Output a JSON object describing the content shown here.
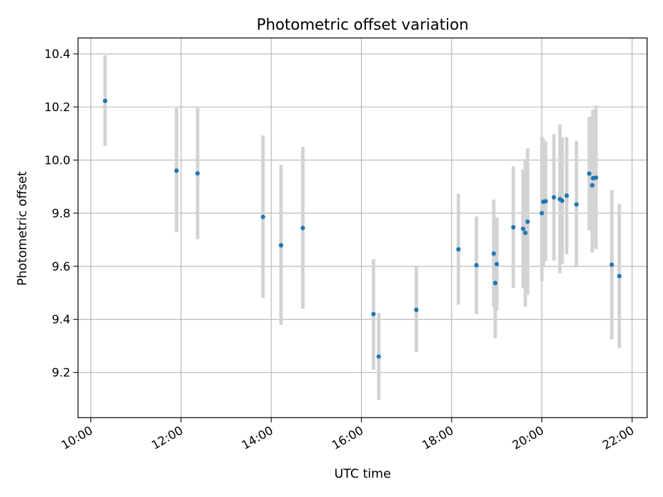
{
  "chart_data": {
    "type": "scatter",
    "title": "Photometric offset variation",
    "xlabel": "UTC time",
    "ylabel": "Photometric offset",
    "x_tick_labels": [
      "10:00",
      "12:00",
      "14:00",
      "16:00",
      "18:00",
      "20:00",
      "22:00"
    ],
    "y_tick_labels": [
      "9.2",
      "9.4",
      "9.6",
      "9.8",
      "10.0",
      "10.2",
      "10.4"
    ],
    "x_ticks": [
      "10:00",
      "12:00",
      "14:00",
      "16:00",
      "18:00",
      "20:00",
      "22:00"
    ],
    "y_ticks": [
      9.2,
      9.4,
      9.6,
      9.8,
      10.0,
      10.2,
      10.4
    ],
    "xlim": [
      "09:43",
      "22:20"
    ],
    "ylim": [
      9.03,
      10.46
    ],
    "grid": true,
    "marker_color": "#1f77b4",
    "errorbar_color": "#d3d3d3",
    "points": [
      {
        "x": "10:19",
        "y": 10.223,
        "low": 10.053,
        "high": 10.395
      },
      {
        "x": "11:54",
        "y": 9.96,
        "low": 9.728,
        "high": 10.196
      },
      {
        "x": "12:22",
        "y": 9.95,
        "low": 9.702,
        "high": 10.2
      },
      {
        "x": "13:49",
        "y": 9.786,
        "low": 9.48,
        "high": 10.093
      },
      {
        "x": "14:13",
        "y": 9.679,
        "low": 9.379,
        "high": 9.982
      },
      {
        "x": "14:42",
        "y": 9.744,
        "low": 9.44,
        "high": 10.05
      },
      {
        "x": "16:16",
        "y": 9.42,
        "low": 9.21,
        "high": 9.627
      },
      {
        "x": "16:23",
        "y": 9.26,
        "low": 9.097,
        "high": 9.424
      },
      {
        "x": "17:13",
        "y": 9.436,
        "low": 9.277,
        "high": 9.597
      },
      {
        "x": "18:09",
        "y": 9.664,
        "low": 9.455,
        "high": 9.873
      },
      {
        "x": "18:33",
        "y": 9.604,
        "low": 9.42,
        "high": 9.788
      },
      {
        "x": "18:56",
        "y": 9.648,
        "low": 9.446,
        "high": 9.851
      },
      {
        "x": "18:58",
        "y": 9.537,
        "low": 9.329,
        "high": 9.745
      },
      {
        "x": "19:00",
        "y": 9.608,
        "low": 9.434,
        "high": 9.784
      },
      {
        "x": "19:22",
        "y": 9.747,
        "low": 9.519,
        "high": 9.976
      },
      {
        "x": "19:35",
        "y": 9.741,
        "low": 9.518,
        "high": 9.964
      },
      {
        "x": "19:38",
        "y": 9.726,
        "low": 9.448,
        "high": 10.004
      },
      {
        "x": "19:41",
        "y": 9.768,
        "low": 9.492,
        "high": 10.044
      },
      {
        "x": "20:00",
        "y": 9.8,
        "low": 9.543,
        "high": 10.088
      },
      {
        "x": "20:02",
        "y": 9.843,
        "low": 9.6,
        "high": 10.08
      },
      {
        "x": "20:05",
        "y": 9.845,
        "low": 9.62,
        "high": 10.07
      },
      {
        "x": "20:16",
        "y": 9.86,
        "low": 9.622,
        "high": 10.097
      },
      {
        "x": "20:24",
        "y": 9.853,
        "low": 9.573,
        "high": 10.134
      },
      {
        "x": "20:27",
        "y": 9.847,
        "low": 9.61,
        "high": 10.085
      },
      {
        "x": "20:33",
        "y": 9.866,
        "low": 9.645,
        "high": 10.087
      },
      {
        "x": "20:46",
        "y": 9.833,
        "low": 9.596,
        "high": 10.072
      },
      {
        "x": "21:03",
        "y": 9.949,
        "low": 9.735,
        "high": 10.163
      },
      {
        "x": "21:07",
        "y": 9.905,
        "low": 9.652,
        "high": 10.166
      },
      {
        "x": "21:08",
        "y": 9.932,
        "low": 9.68,
        "high": 10.19
      },
      {
        "x": "21:12",
        "y": 9.934,
        "low": 9.665,
        "high": 10.205
      },
      {
        "x": "21:33",
        "y": 9.606,
        "low": 9.325,
        "high": 9.887
      },
      {
        "x": "21:43",
        "y": 9.563,
        "low": 9.292,
        "high": 9.834
      }
    ]
  }
}
